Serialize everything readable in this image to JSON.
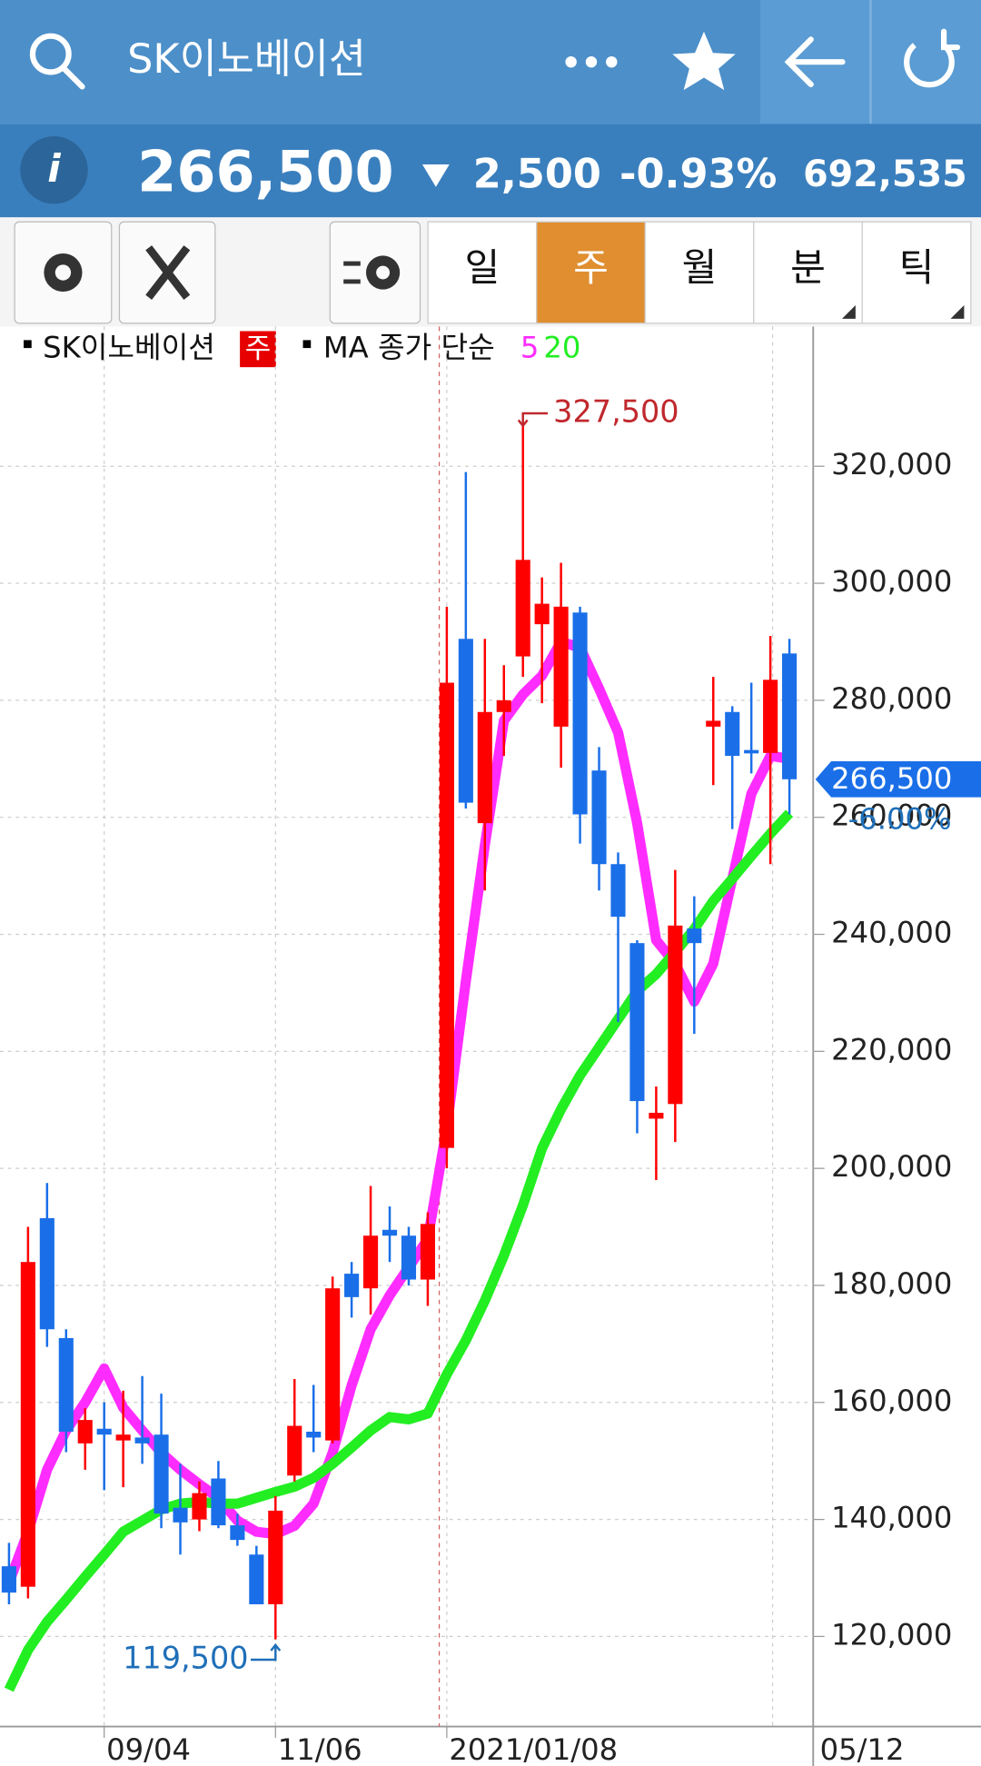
{
  "header": {
    "title": "SK이노베이션",
    "info_label": "i",
    "price": "266,500",
    "change": "2,500",
    "change_pct": "-0.93%",
    "volume": "692,535"
  },
  "tabs": [
    "일",
    "주",
    "월",
    "분",
    "틱"
  ],
  "active_tab": 1,
  "chart_data": {
    "type": "candlestick",
    "legend": {
      "name": "SK이노베이션",
      "period": "주",
      "ma_label": "MA 종가 단순"
    },
    "categories": [
      null,
      null,
      null,
      null,
      null,
      "09/04",
      null,
      null,
      null,
      null,
      null,
      null,
      null,
      null,
      "11/06",
      null,
      null,
      null,
      null,
      null,
      null,
      null,
      null,
      "2021/01/08",
      null,
      null,
      null,
      null,
      null,
      null,
      null,
      null,
      null,
      null,
      null,
      null,
      null,
      null,
      null,
      null,
      null,
      null
    ],
    "end_label": "05/12",
    "open": [
      132000,
      128500,
      191500,
      171000,
      153000,
      155500,
      153500,
      154000,
      154500,
      142000,
      140000,
      147000,
      139000,
      134000,
      125500,
      147500,
      155000,
      153500,
      182000,
      179500,
      189500,
      188500,
      181000,
      203500,
      290500,
      259000,
      278000,
      287500,
      293000,
      275500,
      295000,
      268000,
      252000,
      238500,
      208500,
      211000,
      241000,
      275500,
      278000,
      271500,
      271000,
      288000
    ],
    "high": [
      136000,
      190000,
      197500,
      172500,
      159000,
      160000,
      162000,
      164500,
      161500,
      149500,
      146500,
      150000,
      141000,
      135500,
      144000,
      164000,
      163000,
      181500,
      184000,
      197000,
      193500,
      190000,
      192500,
      296000,
      319000,
      290500,
      286000,
      327500,
      301000,
      303500,
      296000,
      272000,
      254000,
      239000,
      214000,
      251000,
      246500,
      284000,
      279000,
      283000,
      291000,
      290500
    ],
    "low": [
      125500,
      126500,
      169500,
      151500,
      148500,
      145000,
      145500,
      149500,
      138500,
      134000,
      138000,
      138500,
      135500,
      125500,
      119500,
      146500,
      151500,
      153000,
      174500,
      175000,
      184000,
      180000,
      176500,
      200000,
      261500,
      247500,
      270500,
      284000,
      279500,
      268500,
      255500,
      247500,
      225000,
      206000,
      198000,
      204500,
      223000,
      265500,
      258000,
      267500,
      252000,
      260500
    ],
    "close": [
      127500,
      184000,
      172500,
      155000,
      157000,
      154500,
      154500,
      153000,
      141000,
      139500,
      144500,
      139000,
      136500,
      125500,
      141500,
      156000,
      154000,
      179500,
      178000,
      188500,
      188500,
      181000,
      190500,
      283000,
      262500,
      278000,
      280000,
      304000,
      296500,
      296000,
      260500,
      252000,
      243000,
      211500,
      209500,
      241500,
      238500,
      276500,
      270500,
      271000,
      283500,
      266500
    ],
    "up_color": "#ff0000",
    "down_color": "#1a6fe8",
    "lines": [
      {
        "name": "5",
        "color": "#ff2cff",
        "values": [
          129200,
          137900,
          148500,
          155200,
          160000,
          165800,
          159100,
          155200,
          151400,
          148500,
          146000,
          143700,
          139800,
          137900,
          137500,
          138900,
          142700,
          151400,
          162900,
          172500,
          178300,
          183100,
          187900,
          207000,
          232000,
          255300,
          276500,
          281000,
          284200,
          290000,
          289000,
          282000,
          274500,
          259000,
          239000,
          235000,
          228500,
          235000,
          249500,
          264000,
          270500,
          270000
        ]
      },
      {
        "name": "20",
        "color": "#22ee22",
        "values": [
          110900,
          117700,
          122500,
          126300,
          130200,
          134000,
          137900,
          139800,
          141700,
          142700,
          143000,
          142700,
          142700,
          143700,
          144700,
          145600,
          147100,
          149500,
          152300,
          155200,
          157500,
          157100,
          158100,
          164800,
          170600,
          177400,
          185100,
          193700,
          203400,
          210100,
          215900,
          220700,
          225500,
          230300,
          233200,
          237000,
          240900,
          245700,
          249500,
          253400,
          257200,
          260700
        ]
      }
    ],
    "high_label": "327,500",
    "low_label": "119,500",
    "last_price_label": "266,500",
    "last_change_label": "-6.00%",
    "ylim": [
      104600,
      342900
    ],
    "yticks": [
      {
        "value": 120000,
        "label": "120,000"
      },
      {
        "value": 140000,
        "label": "140,000"
      },
      {
        "value": 160000,
        "label": "160,000"
      },
      {
        "value": 180000,
        "label": "180,000"
      },
      {
        "value": 200000,
        "label": "200,000"
      },
      {
        "value": 220000,
        "label": "220,000"
      },
      {
        "value": 240000,
        "label": "240,000"
      },
      {
        "value": 260000,
        "label": "260,000"
      },
      {
        "value": 280000,
        "label": "280,000"
      },
      {
        "value": 300000,
        "label": "300,000"
      },
      {
        "value": 320000,
        "label": "320,000"
      }
    ],
    "grid": true
  }
}
